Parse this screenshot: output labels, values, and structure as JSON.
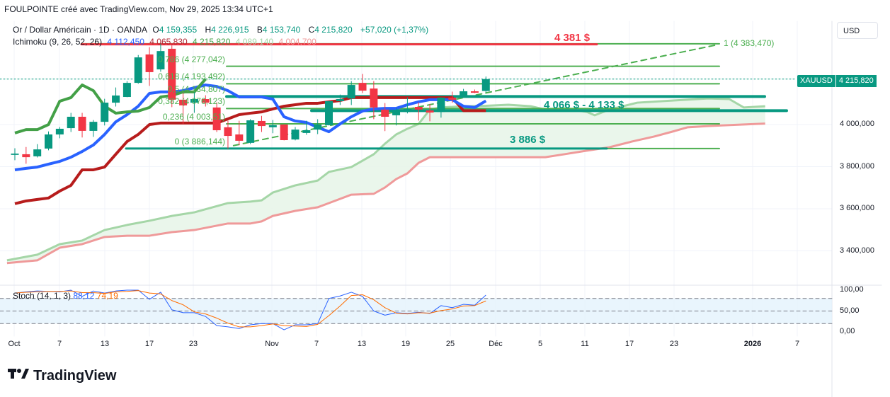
{
  "header": "FOULPOINTE créé avec TradingView.com, Nov 29, 2025 13:34 UTC+1",
  "legend": {
    "symbol": "Or / Dollar Américain · 1D · OANDA",
    "o_label": "O",
    "o": "4 159,355",
    "h_label": "H",
    "h": "4 226,915",
    "l_label": "B",
    "l": "4 153,740",
    "c_label": "C",
    "c": "4 215,820",
    "change": "+57,020 (+1,37%)",
    "ichimoku_label": "Ichimoku (9, 26, 52, 26)",
    "ichimoku_values": [
      "4 112,450",
      "4 065,830",
      "4 215,820",
      "4 089,140",
      "4 004,700"
    ]
  },
  "currency_button": "USD",
  "price_tag": {
    "symbol": "XAUUSD",
    "value": "4 215,820"
  },
  "stoch": {
    "label": "Stoch (14, 1, 3)",
    "k": "88,12",
    "d": "74,19"
  },
  "footer_logo": "TradingView",
  "colors": {
    "up": "#089981",
    "down": "#f23645",
    "tenkan": "#2962ff",
    "kijun": "#b71c1c",
    "chikou": "#43a047",
    "senkou_a": "#a5d6a7",
    "senkou_b": "#ef9a9a",
    "fib": "#4caf50",
    "zone": "#089981",
    "resistance": "#f23645"
  },
  "chart_data": {
    "type": "candlestick",
    "title": "Or / Dollar Américain · 1D · OANDA",
    "ylim": [
      3290,
      4420
    ],
    "y_ticks": [
      "4 000,000",
      "3 800,000",
      "3 600,000",
      "3 400,000"
    ],
    "y_tick_values": [
      4000,
      3800,
      3600,
      3400
    ],
    "x_ticks": [
      "Oct",
      "7",
      "13",
      "17",
      "23",
      "Nov",
      "7",
      "13",
      "19",
      "25",
      "Déc",
      "5",
      "11",
      "17",
      "23",
      "2026",
      "7"
    ],
    "candles": [
      [
        3856,
        3886,
        3832,
        3862
      ],
      [
        3859,
        3892,
        3815,
        3845
      ],
      [
        3849,
        3906,
        3845,
        3882
      ],
      [
        3886,
        3966,
        3879,
        3953
      ],
      [
        3953,
        3987,
        3936,
        3980
      ],
      [
        3983,
        4054,
        3966,
        4037
      ],
      [
        4037,
        4054,
        3940,
        3970
      ],
      [
        3970,
        4020,
        3943,
        4013
      ],
      [
        4013,
        4121,
        3997,
        4104
      ],
      [
        4104,
        4175,
        4087,
        4138
      ],
      [
        4131,
        4205,
        4131,
        4198
      ],
      [
        4198,
        4329,
        4195,
        4319
      ],
      [
        4333,
        4366,
        4185,
        4249
      ],
      [
        4262,
        4383,
        4252,
        4349
      ],
      [
        4360,
        4373,
        4084,
        4118
      ],
      [
        4118,
        4155,
        4004,
        4091
      ],
      [
        4104,
        4161,
        4057,
        4121
      ],
      [
        4121,
        4138,
        4087,
        4104
      ],
      [
        4081,
        4104,
        3966,
        3973
      ],
      [
        3987,
        4017,
        3886,
        3946
      ],
      [
        3953,
        4017,
        3903,
        3923
      ],
      [
        3913,
        4024,
        3909,
        4020
      ],
      [
        4017,
        4040,
        3966,
        3993
      ],
      [
        3987,
        4020,
        3960,
        3997
      ],
      [
        4000,
        4000,
        3926,
        3926
      ],
      [
        3929,
        3987,
        3926,
        3976
      ],
      [
        3960,
        4017,
        3953,
        3973
      ],
      [
        3976,
        4024,
        3956,
        4000
      ],
      [
        3997,
        4111,
        3997,
        4111
      ],
      [
        4111,
        4141,
        4094,
        4121
      ],
      [
        4124,
        4205,
        4094,
        4188
      ],
      [
        4198,
        4239,
        4151,
        4161
      ],
      [
        4171,
        4205,
        4027,
        4081
      ],
      [
        4071,
        4101,
        3970,
        4037
      ],
      [
        4044,
        4077,
        3997,
        4064
      ],
      [
        4060,
        4128,
        4054,
        4074
      ],
      [
        4084,
        4104,
        4020,
        4071
      ],
      [
        4067,
        4097,
        4017,
        4057
      ],
      [
        4060,
        4128,
        4034,
        4128
      ],
      [
        4128,
        4155,
        4104,
        4118
      ],
      [
        4131,
        4168,
        4128,
        4158
      ],
      [
        4158,
        4165,
        4151,
        4151
      ],
      [
        4159.355,
        4226.915,
        4153.74,
        4215.82
      ]
    ],
    "ichimoku": {
      "tenkan": [
        3785,
        3792,
        3798,
        3812,
        3825,
        3845,
        3872,
        3903,
        3953,
        4013,
        4047,
        4087,
        4148,
        4155,
        4155,
        4161,
        4175,
        4188,
        4181,
        4161,
        4131,
        4131,
        4131,
        4121,
        4037,
        4017,
        4010,
        3987,
        3966,
        4003,
        4037,
        4064,
        4074,
        4077,
        4077,
        4094,
        4108,
        4118,
        4118,
        4118,
        4087,
        4081,
        4112.45
      ],
      "kijun": [
        3624,
        3637,
        3644,
        3651,
        3684,
        3711,
        3785,
        3785,
        3798,
        3859,
        3919,
        3953,
        4000,
        4007,
        4007,
        4007,
        4007,
        4007,
        4007,
        4027,
        4047,
        4054,
        4060,
        4074,
        4087,
        4094,
        4101,
        4101,
        4108,
        4114,
        4128,
        4128,
        4128,
        4128,
        4128,
        4128,
        4128,
        4128,
        4128,
        4128,
        4066,
        4066,
        4065.83
      ],
      "chikou": [
        3960,
        3976,
        3976,
        4000,
        4111,
        4128,
        4188,
        4161,
        4087,
        4054,
        4060,
        4064,
        4081,
        4131,
        4138,
        4155,
        4155,
        4215.82
      ],
      "senkou_a": [
        [
          -0.7,
          3355
        ],
        [
          2,
          3382
        ],
        [
          4,
          3432
        ],
        [
          6,
          3449
        ],
        [
          8,
          3499
        ],
        [
          10,
          3523
        ],
        [
          12,
          3543
        ],
        [
          14,
          3566
        ],
        [
          16,
          3583
        ],
        [
          19,
          3627
        ],
        [
          21,
          3634
        ],
        [
          22,
          3640
        ],
        [
          23,
          3677
        ],
        [
          25,
          3711
        ],
        [
          27,
          3734
        ],
        [
          28,
          3775
        ],
        [
          30,
          3798
        ],
        [
          32,
          3859
        ],
        [
          33,
          3909
        ],
        [
          34,
          3953
        ],
        [
          35,
          3980
        ],
        [
          36,
          4003
        ],
        [
          37,
          4071
        ],
        [
          38,
          4081
        ],
        [
          40,
          4087
        ],
        [
          42,
          4089.14
        ],
        [
          44,
          4094
        ],
        [
          46,
          4087
        ],
        [
          47.3,
          4071
        ],
        [
          49,
          4077
        ],
        [
          51,
          4060
        ],
        [
          51.7,
          4044
        ],
        [
          53,
          4071
        ],
        [
          55.5,
          4104
        ],
        [
          58.6,
          4114
        ],
        [
          61.8,
          4124
        ],
        [
          63.7,
          4121
        ],
        [
          65,
          4081
        ],
        [
          66.9,
          4087
        ]
      ],
      "senkou_b": [
        [
          -0.7,
          3342
        ],
        [
          2,
          3355
        ],
        [
          4,
          3415
        ],
        [
          6,
          3432
        ],
        [
          8,
          3466
        ],
        [
          10,
          3472
        ],
        [
          12,
          3472
        ],
        [
          14,
          3489
        ],
        [
          16,
          3499
        ],
        [
          19,
          3530
        ],
        [
          21,
          3530
        ],
        [
          22,
          3540
        ],
        [
          23,
          3566
        ],
        [
          25,
          3590
        ],
        [
          27,
          3607
        ],
        [
          28,
          3627
        ],
        [
          30,
          3667
        ],
        [
          32,
          3671
        ],
        [
          33,
          3701
        ],
        [
          34,
          3741
        ],
        [
          35,
          3768
        ],
        [
          36,
          3818
        ],
        [
          37,
          3845
        ],
        [
          42,
          3845
        ],
        [
          47.3,
          3845
        ],
        [
          49,
          3859
        ],
        [
          51,
          3876
        ],
        [
          53,
          3892
        ],
        [
          55,
          3919
        ],
        [
          57,
          3943
        ],
        [
          58.6,
          3966
        ],
        [
          60,
          3987
        ],
        [
          61.8,
          3993
        ],
        [
          66.9,
          4004.7
        ]
      ]
    },
    "fibonacci": [
      {
        "label": "1 (4 383,470)",
        "price": 4383.47
      },
      {
        "label": "0,786 (4 277,042)",
        "price": 4277.042
      },
      {
        "label": "0,618 (4 193,492)",
        "price": 4193.492
      },
      {
        "label": "0,5 (4 134,807)",
        "price": 4134.807
      },
      {
        "label": "0,382 (4 076,123)",
        "price": 4076.123
      },
      {
        "label": "0,236 (4 003,51)",
        "price": 4003.51
      },
      {
        "label": "0 (3 886,144)",
        "price": 3886.144
      }
    ],
    "annotations": [
      {
        "text": "4 381 $",
        "price": 4381,
        "kind": "resistance"
      },
      {
        "text": "4 066 $ - 4 133 $",
        "price": 4100,
        "kind": "zone"
      },
      {
        "text": "3 886 $",
        "price": 3886,
        "kind": "support"
      }
    ],
    "zone_lines": [
      4133,
      4066,
      3886
    ],
    "resistance_line": 4381,
    "trendline": [
      [
        19.5,
        3900
      ],
      [
        62.7,
        4380
      ]
    ],
    "last_price": 4215.82,
    "stochastic": {
      "ylim": [
        0,
        100
      ],
      "y_ticks": [
        "100,00",
        "50,00",
        "0,00"
      ],
      "bands": [
        20,
        50,
        80
      ],
      "k": [
        93,
        96,
        98,
        97,
        96,
        100,
        85,
        98,
        93,
        98,
        100,
        100,
        78,
        95,
        53,
        46,
        46,
        37,
        15,
        12,
        8,
        17,
        20,
        20,
        5,
        17,
        17,
        20,
        80,
        86,
        95,
        85,
        50,
        40,
        46,
        44,
        47,
        44,
        63,
        58,
        66,
        64,
        88.12
      ],
      "d": [
        93,
        95,
        96,
        97,
        97,
        98,
        94,
        94,
        92,
        96,
        97,
        99,
        93,
        91,
        75,
        65,
        48,
        43,
        33,
        21,
        12,
        12,
        15,
        19,
        15,
        14,
        13,
        18,
        39,
        62,
        87,
        89,
        77,
        58,
        45,
        43,
        46,
        45,
        51,
        55,
        62,
        63,
        74.19
      ]
    }
  }
}
